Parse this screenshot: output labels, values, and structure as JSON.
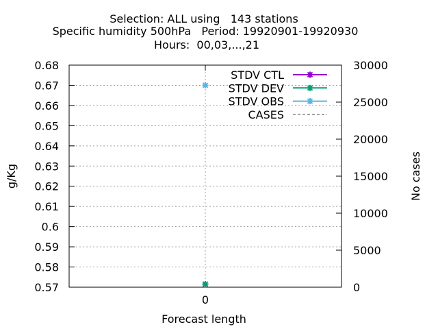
{
  "chart_data": {
    "type": "line",
    "title": [
      "Selection: ALL using   143 stations",
      "Specific humidity 500hPa   Period: 19920901-19920930",
      "Hours:  00,03,...,21"
    ],
    "xlabel": "Forecast length",
    "ylabel": "g/Kg",
    "y2label": "No cases",
    "x": [
      0
    ],
    "x_tick_labels": [
      "0"
    ],
    "xlim": [
      -1,
      1
    ],
    "ylim": [
      0.57,
      0.68
    ],
    "y_ticks": [
      0.57,
      0.58,
      0.59,
      0.6,
      0.61,
      0.62,
      0.63,
      0.64,
      0.65,
      0.66,
      0.67,
      0.68
    ],
    "y_tick_labels": [
      "0.57",
      "0.58",
      "0.59",
      "0.6",
      "0.61",
      "0.62",
      "0.63",
      "0.64",
      "0.65",
      "0.66",
      "0.67",
      "0.68"
    ],
    "y2lim": [
      0,
      30000
    ],
    "y2_ticks": [
      0,
      5000,
      10000,
      15000,
      20000,
      25000,
      30000
    ],
    "y2_tick_labels": [
      "0",
      "5000",
      "10000",
      "15000",
      "20000",
      "25000",
      "30000"
    ],
    "grid": true,
    "legend_position": "top-right",
    "series": [
      {
        "name": "STDV CTL",
        "color": "#9400d3",
        "axis": "y",
        "values": [
          0.5715
        ]
      },
      {
        "name": "STDV DEV",
        "color": "#009e73",
        "axis": "y",
        "values": [
          0.5715
        ]
      },
      {
        "name": "STDV OBS",
        "color": "#56b4e9",
        "axis": "y",
        "values": [
          0.67
        ]
      },
      {
        "name": "CASES",
        "color": "#808080",
        "axis": "y2",
        "dashed": true,
        "values": [
          0
        ]
      }
    ]
  }
}
